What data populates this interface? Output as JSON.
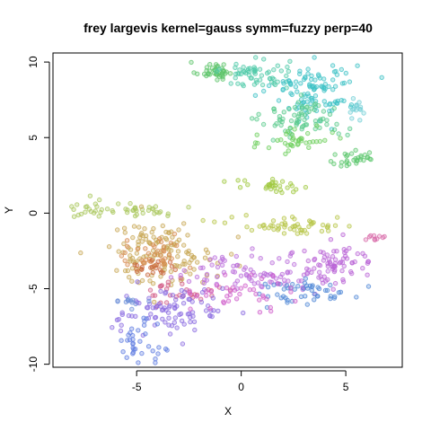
{
  "chart_data": {
    "type": "scatter",
    "title": "frey largevis kernel=gauss symm=fuzzy perp=40",
    "xlabel": "X",
    "ylabel": "Y",
    "xlim": [
      -9,
      7.7
    ],
    "ylim": [
      -10.2,
      10.6
    ],
    "xticks": [
      -5,
      0,
      5
    ],
    "yticks": [
      -10,
      -5,
      0,
      5,
      10
    ],
    "xtick_labels": [
      "-5",
      "0",
      "5"
    ],
    "ytick_labels": [
      "-10",
      "-5",
      "0",
      "5",
      "10"
    ],
    "grid": false,
    "legend": "none",
    "marker": "open-circle",
    "clusters": [
      {
        "color": "#5ec46a",
        "cx": -1.3,
        "cy": 9.4,
        "sx": 0.45,
        "sy": 0.3,
        "n": 40
      },
      {
        "color": "#4fc9a8",
        "cx": 0.7,
        "cy": 9.2,
        "sx": 0.8,
        "sy": 0.5,
        "n": 60
      },
      {
        "color": "#3ec2c6",
        "cx": 3.5,
        "cy": 8.2,
        "sx": 1.0,
        "sy": 1.0,
        "n": 110
      },
      {
        "color": "#58c98b",
        "cx": 3.0,
        "cy": 6.2,
        "sx": 1.0,
        "sy": 0.6,
        "n": 70
      },
      {
        "color": "#6dcf5c",
        "cx": 2.7,
        "cy": 4.8,
        "sx": 0.8,
        "sy": 0.5,
        "n": 40
      },
      {
        "color": "#5cc76e",
        "cx": 5.4,
        "cy": 3.6,
        "sx": 0.6,
        "sy": 0.3,
        "n": 30
      },
      {
        "color": "#74cfd6",
        "cx": 5.5,
        "cy": 6.8,
        "sx": 0.3,
        "sy": 0.3,
        "n": 15
      },
      {
        "color": "#a9c75c",
        "cx": -5.5,
        "cy": 0.3,
        "sx": 1.6,
        "sy": 0.3,
        "n": 50
      },
      {
        "color": "#9fc83e",
        "cx": 1.5,
        "cy": 1.7,
        "sx": 0.9,
        "sy": 0.25,
        "n": 30
      },
      {
        "color": "#b7c547",
        "cx": 2.5,
        "cy": -0.8,
        "sx": 1.6,
        "sy": 0.3,
        "n": 55
      },
      {
        "color": "#c7a552",
        "cx": -3.9,
        "cy": -2.6,
        "sx": 1.3,
        "sy": 1.0,
        "n": 140
      },
      {
        "color": "#d6884d",
        "cx": -4.3,
        "cy": -2.9,
        "sx": 0.8,
        "sy": 0.6,
        "n": 40
      },
      {
        "color": "#c8633b",
        "cx": -4.0,
        "cy": -3.6,
        "sx": 0.6,
        "sy": 0.3,
        "n": 20
      },
      {
        "color": "#d25a85",
        "cx": -2.8,
        "cy": -5.2,
        "sx": 0.8,
        "sy": 0.4,
        "n": 30
      },
      {
        "color": "#b96cdb",
        "cx": 0.8,
        "cy": -3.9,
        "sx": 1.8,
        "sy": 0.6,
        "n": 90
      },
      {
        "color": "#b964d6",
        "cx": 4.5,
        "cy": -3.4,
        "sx": 1.0,
        "sy": 0.7,
        "n": 70
      },
      {
        "color": "#8a6be0",
        "cx": -3.3,
        "cy": -6.5,
        "sx": 1.3,
        "sy": 0.8,
        "n": 90
      },
      {
        "color": "#5d7be0",
        "cx": -5.0,
        "cy": -8.6,
        "sx": 0.5,
        "sy": 0.7,
        "n": 35
      },
      {
        "color": "#4f87d6",
        "cx": 3.0,
        "cy": -5.3,
        "sx": 1.2,
        "sy": 0.5,
        "n": 50
      },
      {
        "color": "#cf5ecb",
        "cx": 0.2,
        "cy": -5.2,
        "sx": 1.2,
        "sy": 0.5,
        "n": 40
      },
      {
        "color": "#6c8fd8",
        "cx": -5.2,
        "cy": -5.9,
        "sx": 0.4,
        "sy": 0.2,
        "n": 12
      },
      {
        "color": "#d86aa8",
        "cx": 6.3,
        "cy": -1.7,
        "sx": 0.3,
        "sy": 0.2,
        "n": 10
      }
    ]
  }
}
